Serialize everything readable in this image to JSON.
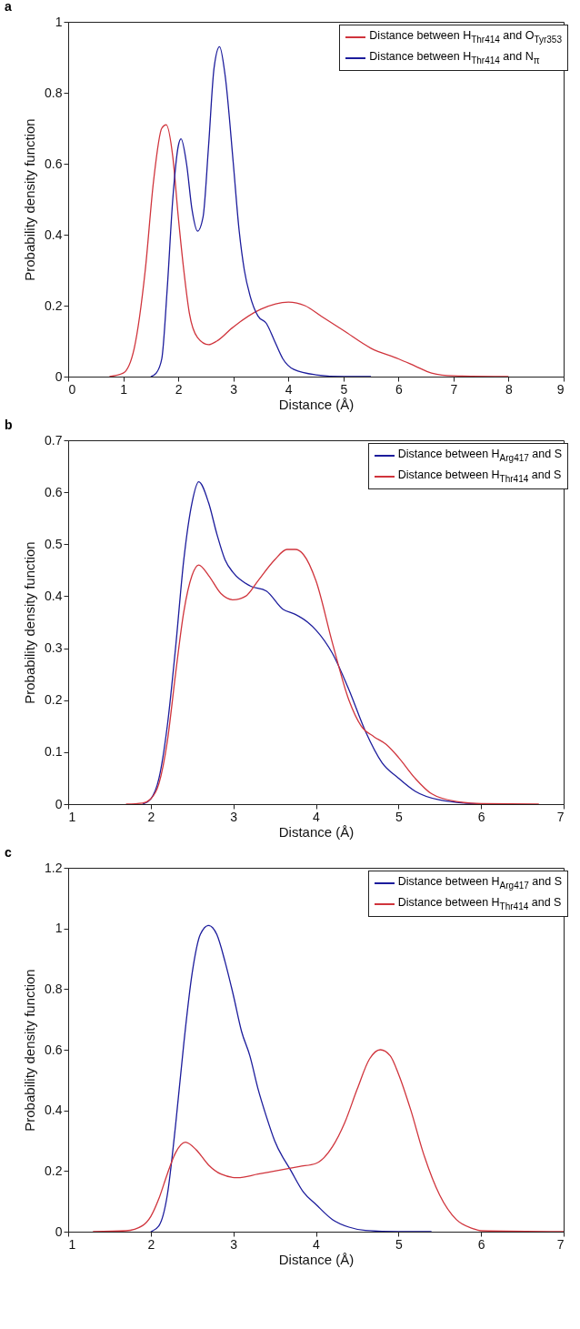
{
  "chart_data": [
    {
      "type": "line",
      "title": "a",
      "xlabel": "Distance (Å)",
      "ylabel": "Probability density function",
      "xlim": [
        0,
        9
      ],
      "xticks": [
        0,
        1,
        2,
        3,
        4,
        5,
        6,
        7,
        8,
        9
      ],
      "ylim": [
        0,
        1
      ],
      "yticks": [
        0,
        0.2,
        0.4,
        0.6,
        0.8,
        1
      ],
      "legend": "top right",
      "grid": false,
      "series": [
        {
          "name": "Distance between H$_{Thr414}$ and O$_{Tyr353}$",
          "color": "#d0343c",
          "x": [
            0.75,
            1.0,
            1.2,
            1.4,
            1.55,
            1.7,
            1.78,
            1.9,
            2.0,
            2.1,
            2.2,
            2.35,
            2.55,
            2.7,
            3.0,
            3.5,
            4.0,
            4.3,
            4.6,
            5.0,
            5.5,
            6.0,
            6.3,
            6.6,
            7.0,
            8.0
          ],
          "values": [
            0,
            0.01,
            0.08,
            0.3,
            0.55,
            0.7,
            0.71,
            0.62,
            0.45,
            0.3,
            0.18,
            0.11,
            0.09,
            0.1,
            0.14,
            0.19,
            0.21,
            0.2,
            0.17,
            0.13,
            0.08,
            0.05,
            0.03,
            0.01,
            0.002,
            0
          ]
        },
        {
          "name": "Distance between H$_{Thr414}$ and N$_{π}$",
          "color": "#1c1c9c",
          "x": [
            1.5,
            1.6,
            1.7,
            1.8,
            1.9,
            2.0,
            2.05,
            2.15,
            2.25,
            2.35,
            2.45,
            2.55,
            2.65,
            2.75,
            2.85,
            3.0,
            3.1,
            3.2,
            3.3,
            3.45,
            3.6,
            3.75,
            3.9,
            4.1,
            4.5,
            5.0,
            5.5
          ],
          "values": [
            0,
            0.01,
            0.05,
            0.25,
            0.5,
            0.65,
            0.67,
            0.6,
            0.47,
            0.41,
            0.45,
            0.65,
            0.87,
            0.93,
            0.85,
            0.6,
            0.42,
            0.3,
            0.23,
            0.17,
            0.15,
            0.1,
            0.05,
            0.02,
            0.005,
            0,
            0
          ]
        }
      ]
    },
    {
      "type": "line",
      "title": "b",
      "xlabel": "Distance (Å)",
      "ylabel": "Probability density function",
      "xlim": [
        1,
        7
      ],
      "xticks": [
        1,
        2,
        3,
        4,
        5,
        6,
        7
      ],
      "ylim": [
        0,
        0.7
      ],
      "yticks": [
        0,
        0.1,
        0.2,
        0.3,
        0.4,
        0.5,
        0.6,
        0.7
      ],
      "legend": "top right",
      "grid": false,
      "series": [
        {
          "name": "Distance between H$_{Arg417}$ and S",
          "color": "#1c1c9c",
          "x": [
            1.9,
            2.0,
            2.1,
            2.2,
            2.3,
            2.4,
            2.5,
            2.58,
            2.7,
            2.8,
            2.9,
            3.0,
            3.2,
            3.4,
            3.6,
            3.75,
            3.9,
            4.0,
            4.2,
            4.4,
            4.6,
            4.8,
            5.0,
            5.2,
            5.5,
            6.0
          ],
          "values": [
            0,
            0.01,
            0.05,
            0.15,
            0.3,
            0.47,
            0.58,
            0.62,
            0.58,
            0.52,
            0.47,
            0.445,
            0.42,
            0.41,
            0.375,
            0.365,
            0.35,
            0.335,
            0.29,
            0.22,
            0.14,
            0.08,
            0.05,
            0.025,
            0.008,
            0
          ]
        },
        {
          "name": "Distance between H$_{Thr414}$ and S",
          "color": "#d0343c",
          "x": [
            1.7,
            1.9,
            2.0,
            2.1,
            2.2,
            2.3,
            2.4,
            2.5,
            2.58,
            2.7,
            2.85,
            3.0,
            3.15,
            3.3,
            3.5,
            3.65,
            3.75,
            3.85,
            4.0,
            4.2,
            4.4,
            4.55,
            4.7,
            4.85,
            5.0,
            5.2,
            5.4,
            5.7,
            6.0,
            6.7
          ],
          "values": [
            0,
            0.002,
            0.01,
            0.04,
            0.12,
            0.25,
            0.37,
            0.44,
            0.46,
            0.44,
            0.405,
            0.393,
            0.4,
            0.43,
            0.47,
            0.49,
            0.49,
            0.48,
            0.43,
            0.31,
            0.2,
            0.15,
            0.13,
            0.115,
            0.09,
            0.05,
            0.02,
            0.005,
            0.001,
            0
          ]
        }
      ]
    },
    {
      "type": "line",
      "title": "c",
      "xlabel": "Distance (Å)",
      "ylabel": "Probability density function",
      "xlim": [
        1,
        7
      ],
      "xticks": [
        1,
        2,
        3,
        4,
        5,
        6,
        7
      ],
      "ylim": [
        0,
        1.2
      ],
      "yticks": [
        0,
        0.2,
        0.4,
        0.6,
        0.8,
        1,
        1.2
      ],
      "legend": "top right",
      "grid": false,
      "series": [
        {
          "name": "Distance between H$_{Arg417}$ and S",
          "color": "#1c1c9c",
          "x": [
            2.0,
            2.1,
            2.2,
            2.3,
            2.4,
            2.5,
            2.6,
            2.7,
            2.8,
            2.9,
            3.0,
            3.1,
            3.2,
            3.3,
            3.4,
            3.5,
            3.7,
            3.85,
            4.0,
            4.2,
            4.4,
            4.6,
            5.0,
            5.4
          ],
          "values": [
            0,
            0.02,
            0.12,
            0.35,
            0.62,
            0.85,
            0.98,
            1.01,
            0.98,
            0.89,
            0.78,
            0.66,
            0.58,
            0.47,
            0.38,
            0.3,
            0.2,
            0.13,
            0.09,
            0.04,
            0.015,
            0.004,
            0,
            0
          ]
        },
        {
          "name": "Distance between H$_{Thr414}$ and S",
          "color": "#d0343c",
          "x": [
            1.3,
            1.7,
            1.9,
            2.0,
            2.1,
            2.2,
            2.3,
            2.42,
            2.55,
            2.7,
            2.85,
            3.05,
            3.3,
            3.5,
            3.8,
            4.0,
            4.2,
            4.35,
            4.5,
            4.65,
            4.78,
            4.9,
            5.0,
            5.15,
            5.3,
            5.5,
            5.7,
            5.9,
            6.0,
            7.0
          ],
          "values": [
            0,
            0.003,
            0.02,
            0.05,
            0.11,
            0.19,
            0.26,
            0.295,
            0.27,
            0.22,
            0.19,
            0.178,
            0.19,
            0.2,
            0.215,
            0.225,
            0.28,
            0.36,
            0.47,
            0.57,
            0.6,
            0.58,
            0.52,
            0.4,
            0.26,
            0.12,
            0.04,
            0.01,
            0.003,
            0
          ]
        }
      ]
    }
  ]
}
